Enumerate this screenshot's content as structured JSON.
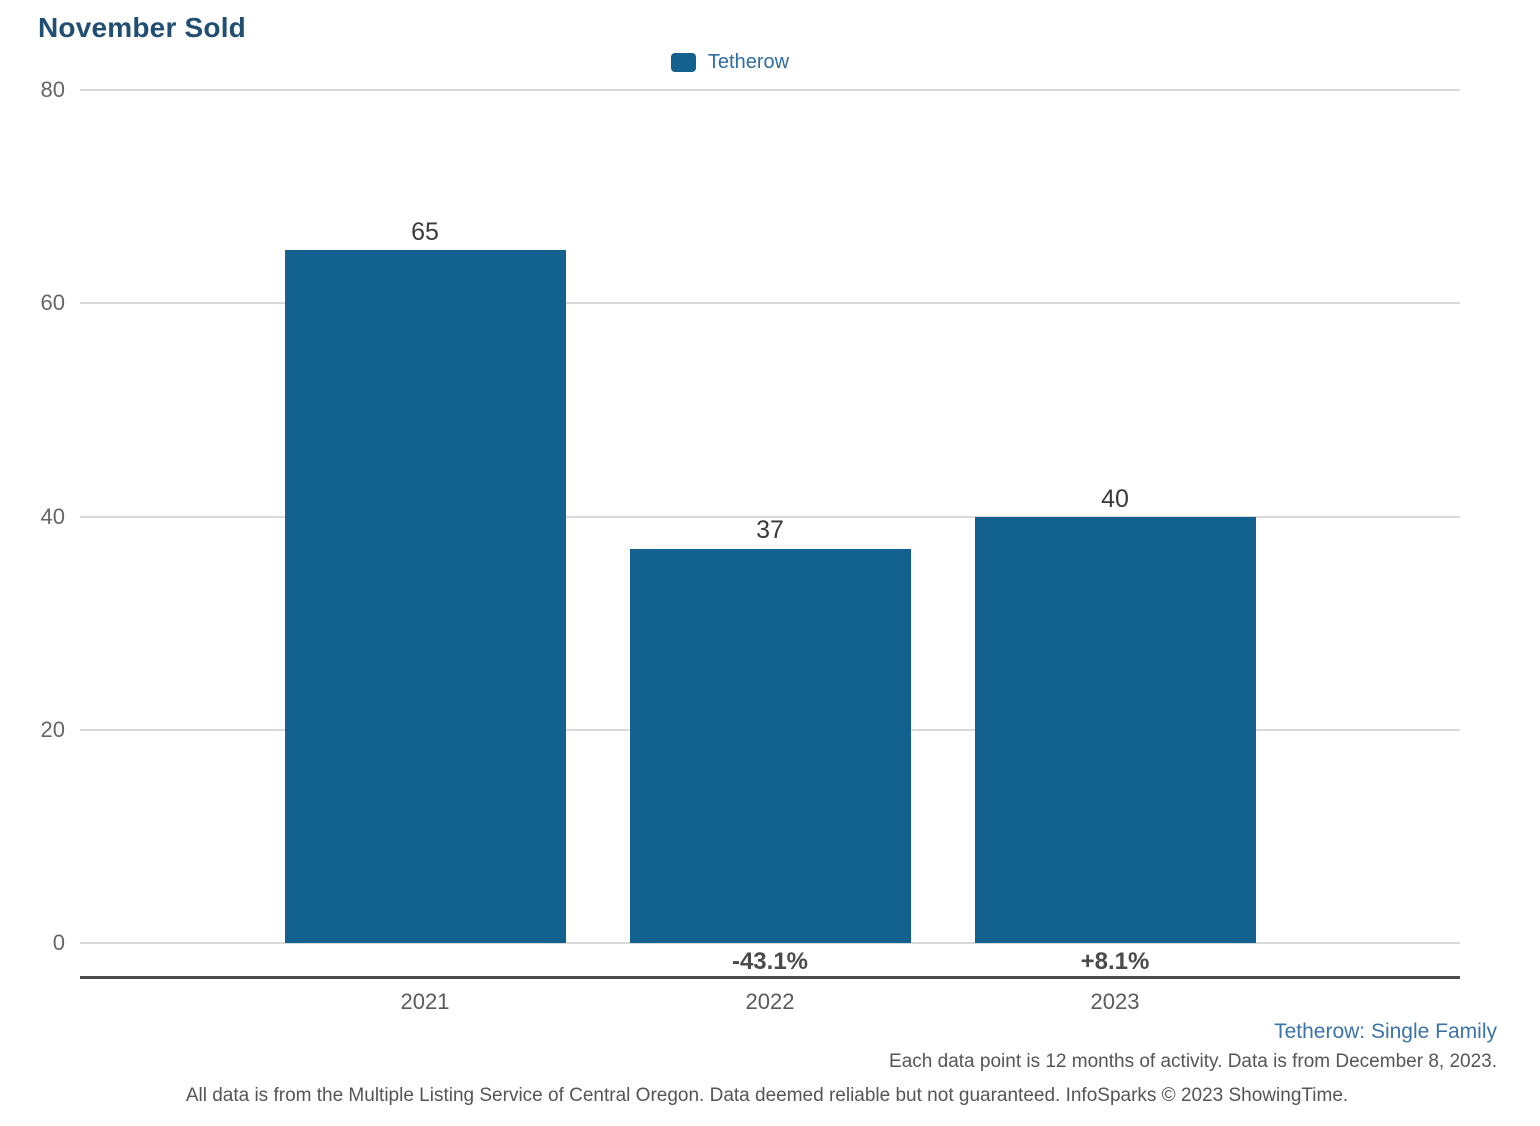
{
  "title": "November Sold",
  "legend": {
    "label": "Tetherow"
  },
  "chart_data": {
    "type": "bar",
    "title": "November Sold",
    "categories": [
      "2021",
      "2022",
      "2023"
    ],
    "series": [
      {
        "name": "Tetherow",
        "values": [
          65,
          37,
          40
        ]
      }
    ],
    "value_labels": [
      "65",
      "37",
      "40"
    ],
    "pct_change_labels": [
      "",
      "-43.1%",
      "+8.1%"
    ],
    "xlabel": "",
    "ylabel": "",
    "ylim": [
      0,
      80
    ],
    "yticks": [
      0,
      20,
      40,
      60,
      80
    ],
    "grid": "horizontal",
    "legend_position": "top-center",
    "bar_color": "#12618e"
  },
  "footer": {
    "series_note": "Tetherow: Single Family",
    "data_note": "Each data point is 12 months of activity. Data is from December 8, 2023.",
    "attribution": "All data is from the Multiple Listing Service of Central Oregon. Data deemed reliable but not guaranteed. InfoSparks © 2023 ShowingTime."
  },
  "colors": {
    "bar": "#12618e",
    "title": "#214e73",
    "legend_text": "#2e6d9f",
    "grid": "#d9d9d9",
    "axis_line": "#4c4c4c",
    "tick_text": "#666666",
    "year_text": "#5a5a5a",
    "value_text": "#3a3a3a",
    "pct_text": "#4a4a4a",
    "note_blue": "#3c73a8",
    "note_gray": "#555555"
  }
}
